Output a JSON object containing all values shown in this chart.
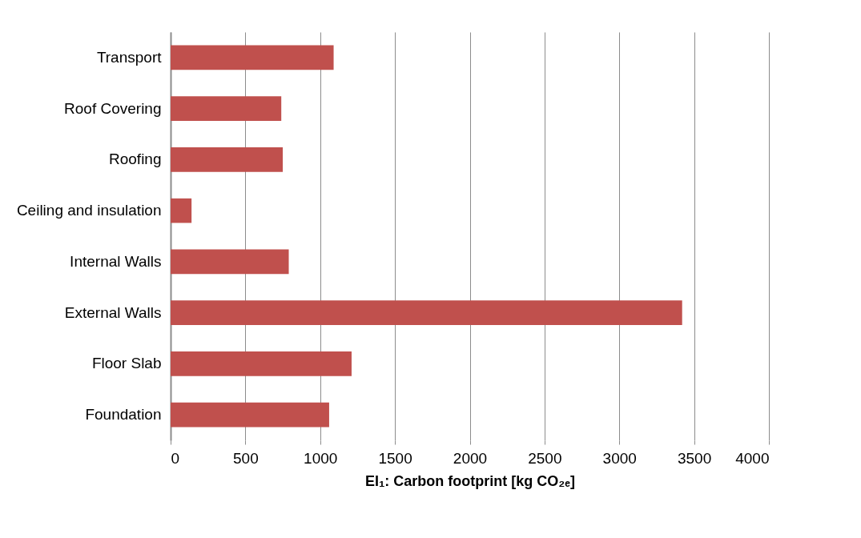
{
  "chart_data": {
    "type": "bar",
    "orientation": "horizontal",
    "xlabel": "EI₁: Carbon footprint [kg CO₂ₑ]",
    "categories": [
      "Transport",
      "Roof Covering",
      "Roofing",
      "Ceiling and insulation",
      "Internal Walls",
      "External Walls",
      "Floor Slab",
      "Foundation"
    ],
    "values": [
      1090,
      740,
      750,
      140,
      790,
      3420,
      1210,
      1060
    ],
    "color": "#c0504d",
    "xlim": [
      0,
      4000
    ],
    "xticks": [
      0,
      500,
      1000,
      1500,
      2000,
      2500,
      3000,
      3500,
      4000
    ],
    "grid": "x"
  }
}
